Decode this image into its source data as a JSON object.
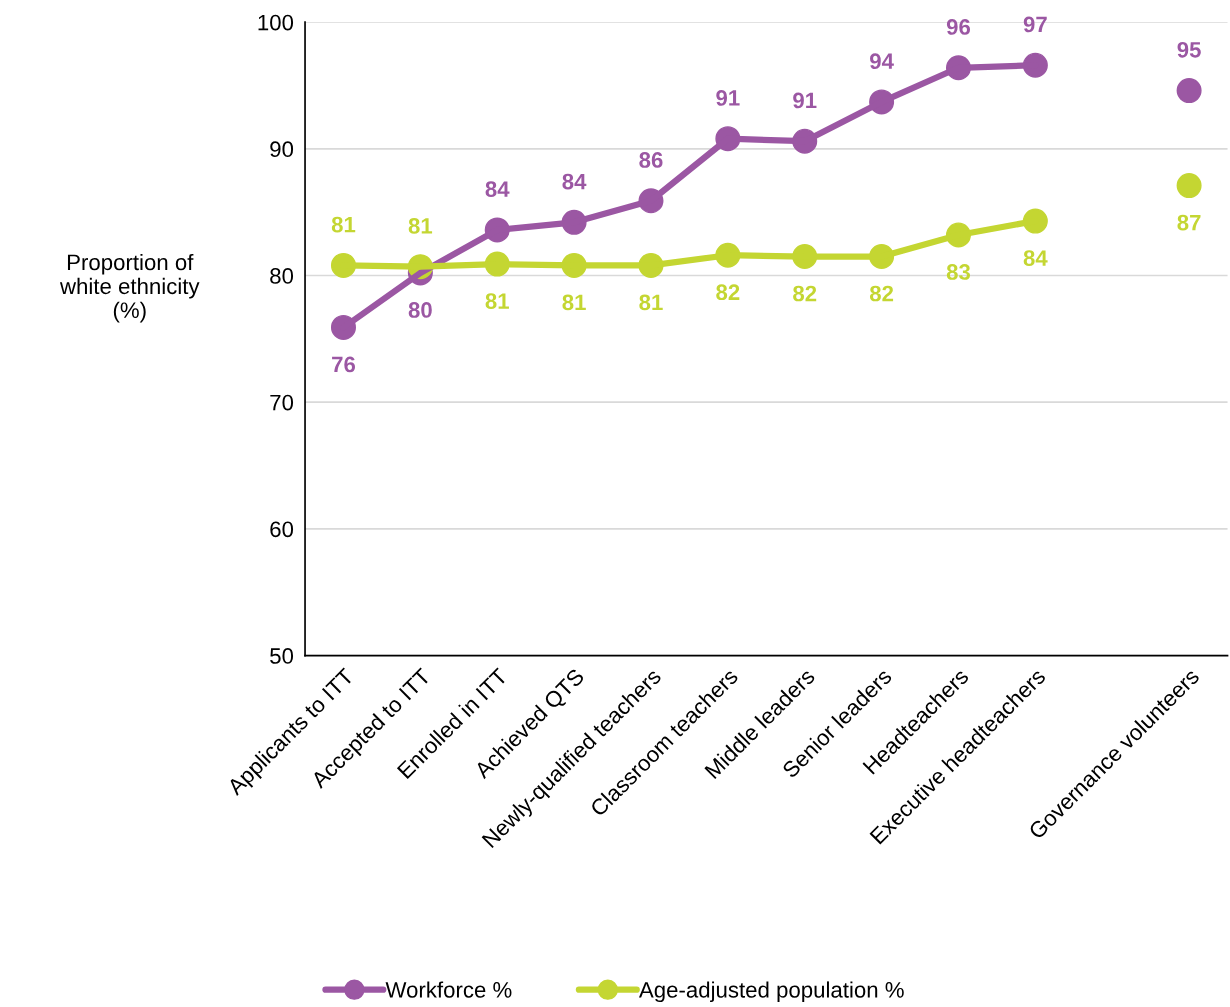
{
  "chart_data": {
    "type": "line",
    "categories": [
      "Applicants to ITT",
      "Accepted to ITT",
      "Enrolled in ITT",
      "Achieved QTS",
      "Newly-qualified teachers",
      "Classroom teachers",
      "Middle leaders",
      "Senior leaders",
      "Headteachers",
      "Executive headteachers",
      null,
      "Governance volunteers"
    ],
    "series": [
      {
        "name": "Workforce %",
        "color": "#9b57a3",
        "values": [
          75.9,
          80.2,
          83.6,
          84.2,
          85.9,
          90.8,
          90.6,
          93.7,
          96.4,
          96.6,
          null,
          94.6
        ],
        "value_labels": [
          "76",
          "80",
          "84",
          "84",
          "86",
          "91",
          "91",
          "94",
          "96",
          "97",
          null,
          "95"
        ]
      },
      {
        "name": "Age-adjusted population %",
        "color": "#c4d632",
        "values": [
          80.8,
          80.7,
          80.9,
          80.8,
          80.8,
          81.6,
          81.5,
          81.5,
          83.2,
          84.3,
          null,
          87.1
        ],
        "value_labels": [
          "81",
          "81",
          "81",
          "81",
          "81",
          "82",
          "82",
          "82",
          "83",
          "84",
          null,
          "87"
        ]
      }
    ],
    "ylabel": "Proportion of\nwhite ethnicity\n(%)",
    "ylim": [
      50,
      100
    ],
    "yticks": [
      50,
      60,
      70,
      80,
      90,
      100
    ],
    "grid": "y",
    "legend": "bottom",
    "marker": "circle",
    "line_style": "solid"
  }
}
